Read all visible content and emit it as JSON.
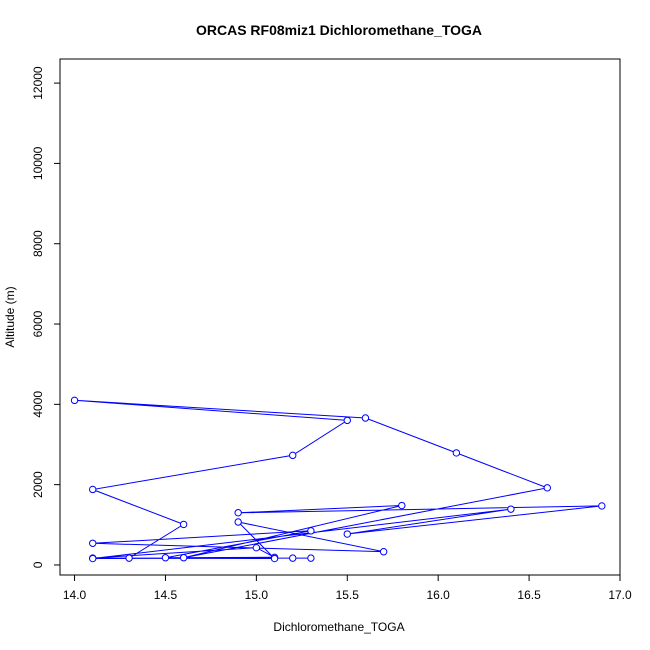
{
  "chart_data": {
    "type": "line",
    "title": "ORCAS RF08miz1 Dichloromethane_TOGA",
    "xlabel": "Dichloromethane_TOGA",
    "ylabel": "Altitude (m)",
    "xlim": [
      13.92,
      17.0
    ],
    "ylim": [
      -250,
      12600
    ],
    "xticks": [
      "14.0",
      "14.5",
      "15.0",
      "15.5",
      "16.0",
      "16.5",
      "17.0"
    ],
    "xtick_values": [
      14.0,
      14.5,
      15.0,
      15.5,
      16.0,
      16.5,
      17.0
    ],
    "yticks": [
      "0",
      "2000",
      "4000",
      "6000",
      "8000",
      "10000",
      "12000"
    ],
    "ytick_values": [
      0,
      2000,
      4000,
      6000,
      8000,
      10000,
      12000
    ],
    "grid": false,
    "legend": "none",
    "series_color": "#0000ff",
    "marker": "open-circle",
    "points": [
      {
        "x": 15.3,
        "y": 170
      },
      {
        "x": 14.1,
        "y": 170
      },
      {
        "x": 15.0,
        "y": 430
      },
      {
        "x": 15.1,
        "y": 190
      },
      {
        "x": 14.5,
        "y": 180
      },
      {
        "x": 15.3,
        "y": 850
      },
      {
        "x": 14.1,
        "y": 540
      },
      {
        "x": 15.7,
        "y": 330
      },
      {
        "x": 14.9,
        "y": 1070
      },
      {
        "x": 15.1,
        "y": 160
      },
      {
        "x": 14.3,
        "y": 170
      },
      {
        "x": 14.6,
        "y": 1010
      },
      {
        "x": 14.1,
        "y": 1880
      },
      {
        "x": 15.2,
        "y": 2730
      },
      {
        "x": 15.5,
        "y": 3600
      },
      {
        "x": 14.0,
        "y": 4100
      },
      {
        "x": 15.6,
        "y": 3660
      },
      {
        "x": 16.1,
        "y": 2790
      },
      {
        "x": 16.6,
        "y": 1920
      },
      {
        "x": 14.6,
        "y": 180
      },
      {
        "x": 15.8,
        "y": 1480
      },
      {
        "x": 14.9,
        "y": 1300
      },
      {
        "x": 16.9,
        "y": 1470
      },
      {
        "x": 15.5,
        "y": 770
      },
      {
        "x": 16.4,
        "y": 1390
      },
      {
        "x": 14.1,
        "y": 160
      },
      {
        "x": 15.2,
        "y": 170
      }
    ]
  }
}
